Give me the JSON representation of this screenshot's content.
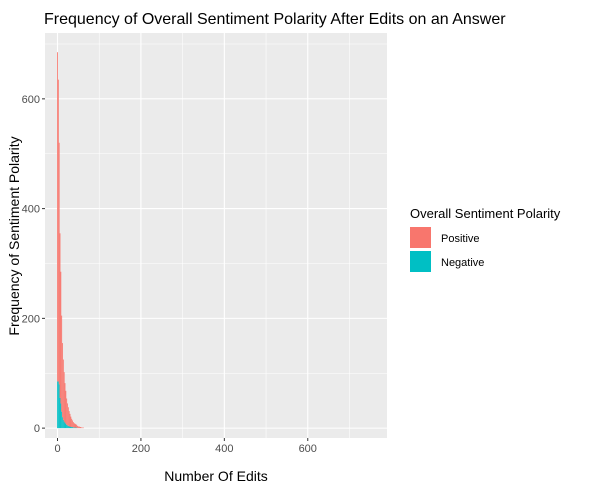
{
  "chart_data": {
    "type": "bar",
    "title": "Frequency of Overall Sentiment Polarity After Edits on an Answer",
    "xlabel": "Number Of Edits",
    "ylabel": "Frequency of Sentiment Polarity",
    "xlim": [
      -30,
      790
    ],
    "ylim": [
      -18,
      720
    ],
    "xticks": [
      0,
      200,
      400,
      600
    ],
    "xtick_labels": [
      "0",
      "200",
      "400",
      "600"
    ],
    "yticks": [
      0,
      200,
      400,
      600
    ],
    "ytick_labels": [
      "0",
      "200",
      "400",
      "600"
    ],
    "grid": true,
    "stacked": true,
    "legend": {
      "title": "Overall Sentiment Polarity",
      "position": "right"
    },
    "bin_width": 2,
    "series": [
      {
        "name": "Positive",
        "color": "#F8766D",
        "x": [
          0,
          2,
          4,
          6,
          8,
          10,
          12,
          14,
          16,
          18,
          20,
          22,
          24,
          26,
          28,
          30,
          32,
          34,
          36,
          38,
          40,
          42,
          44,
          46,
          48,
          50,
          52,
          54,
          56,
          58,
          60,
          62
        ],
        "values": [
          600,
          550,
          440,
          300,
          240,
          175,
          135,
          110,
          90,
          72,
          60,
          48,
          40,
          34,
          28,
          23,
          19,
          15,
          12,
          10,
          8,
          7,
          6,
          5,
          4,
          3,
          3,
          2,
          2,
          1,
          1,
          1
        ]
      },
      {
        "name": "Negative",
        "color": "#00BFC4",
        "x": [
          0,
          2,
          4,
          6,
          8,
          10,
          12,
          14,
          16,
          18,
          20,
          22,
          24,
          26,
          28,
          30,
          32,
          34,
          36,
          38,
          40,
          42,
          44,
          46,
          48,
          50,
          52,
          54,
          56,
          58,
          60,
          62
        ],
        "values": [
          85,
          85,
          80,
          55,
          45,
          30,
          20,
          15,
          12,
          10,
          8,
          6,
          5,
          4,
          3,
          3,
          2,
          2,
          2,
          1,
          1,
          1,
          1,
          1,
          0,
          0,
          0,
          0,
          0,
          0,
          0,
          0
        ]
      }
    ]
  }
}
